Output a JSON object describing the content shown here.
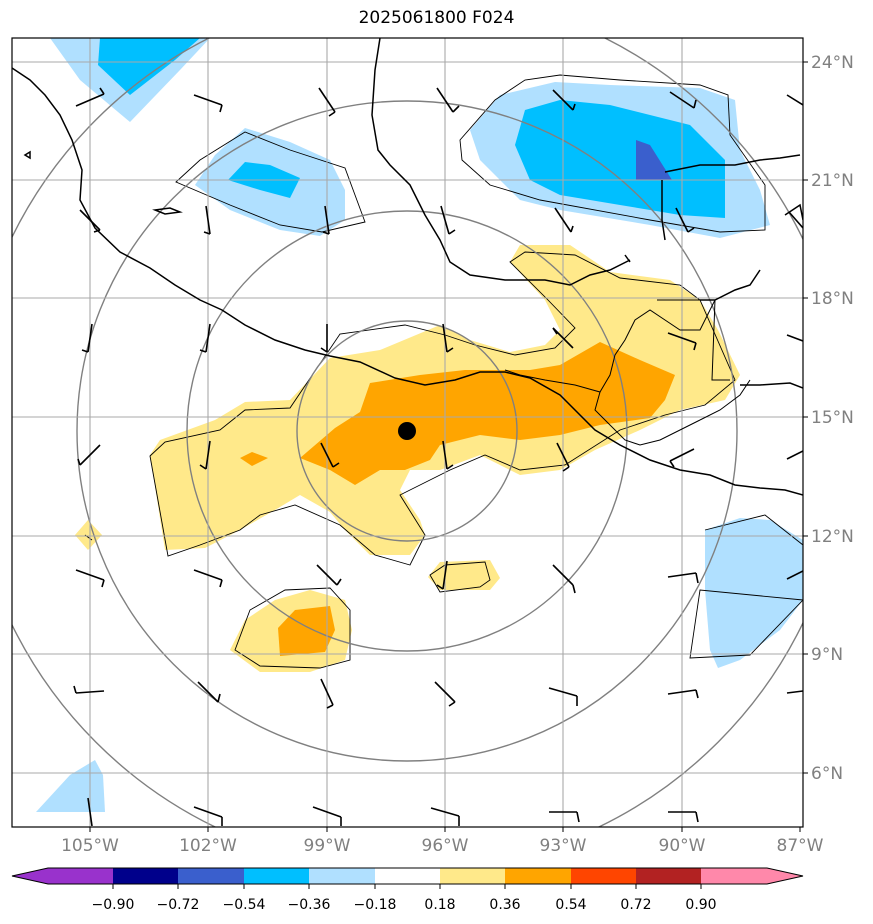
{
  "title": "2025061800 F024",
  "lat_labels": [
    "24°N",
    "21°N",
    "18°N",
    "15°N",
    "12°N",
    "9°N",
    "6°N"
  ],
  "lon_labels": [
    "105°W",
    "102°W",
    "99°W",
    "96°W",
    "93°W",
    "90°W",
    "87°W"
  ],
  "colorbar": {
    "tick_labels": [
      "−0.90",
      "−0.72",
      "−0.54",
      "−0.36",
      "−0.18",
      "0.18",
      "0.36",
      "0.54",
      "0.72",
      "0.90"
    ],
    "colors": [
      "#9932cc",
      "#00008b",
      "#3a5fcd",
      "#00bfff",
      "#b0e0ff",
      "#ffffff",
      "#ffe98a",
      "#ffa500",
      "#ff4500",
      "#b22222",
      "#ff88aa"
    ]
  },
  "storm_center": {
    "lat": 14.6,
    "lon": -97.0
  },
  "map": {
    "lat_range": [
      4.7,
      24.7
    ],
    "lon_range": [
      -107,
      -87
    ]
  }
}
